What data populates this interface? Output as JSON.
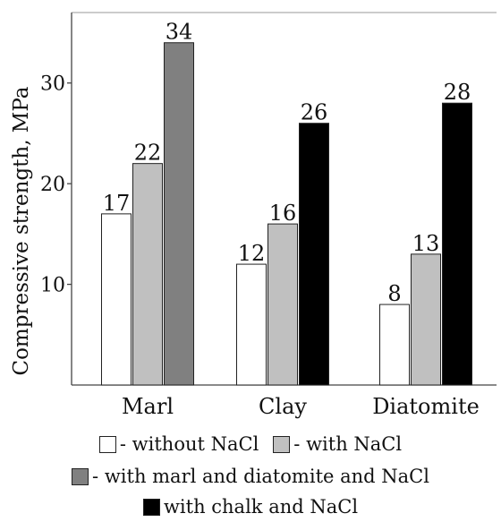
{
  "chart_data": {
    "type": "bar",
    "title": "",
    "ylabel": "Compressive strength, MPa",
    "xlabel": "",
    "ylim": [
      0,
      37
    ],
    "yticks": [
      10,
      20,
      30
    ],
    "ytick_labels": [
      "10",
      "20",
      "30"
    ],
    "grid": false,
    "legend_position": "bottom",
    "groups": [
      {
        "category": "Marl",
        "bars": [
          {
            "series": "without NaCl",
            "value": 17,
            "label": "17"
          },
          {
            "series": "with NaCl",
            "value": 22,
            "label": "22"
          },
          {
            "series": "with marl and diatomite and NaCl",
            "value": 34,
            "label": "34"
          }
        ]
      },
      {
        "category": "Clay",
        "bars": [
          {
            "series": "without NaCl",
            "value": 12,
            "label": "12"
          },
          {
            "series": "with NaCl",
            "value": 16,
            "label": "16"
          },
          {
            "series": "with chalk and NaCl",
            "value": 26,
            "label": "26"
          }
        ]
      },
      {
        "category": "Diatomite",
        "bars": [
          {
            "series": "without NaCl",
            "value": 8,
            "label": "8"
          },
          {
            "series": "with NaCl",
            "value": 13,
            "label": "13"
          },
          {
            "series": "with chalk and NaCl",
            "value": 28,
            "label": "28"
          }
        ]
      }
    ],
    "series": [
      {
        "name": "without NaCl",
        "color": "#ffffff"
      },
      {
        "name": "with NaCl",
        "color": "#c0c0c0"
      },
      {
        "name": "with marl and diatomite and NaCl",
        "color": "#808080"
      },
      {
        "name": "with chalk and NaCl",
        "color": "#000000"
      }
    ]
  },
  "legend": {
    "items": [
      {
        "text": "- without NaCl",
        "color": "#ffffff",
        "swatch": true
      },
      {
        "text": "- with NaCl",
        "color": "#c0c0c0",
        "swatch": true
      },
      {
        "text": "- with marl and diatomite and NaCl",
        "color": "#808080",
        "swatch": true
      },
      {
        "text": "with chalk and NaCl",
        "color": "#000000",
        "swatch": true
      }
    ]
  }
}
